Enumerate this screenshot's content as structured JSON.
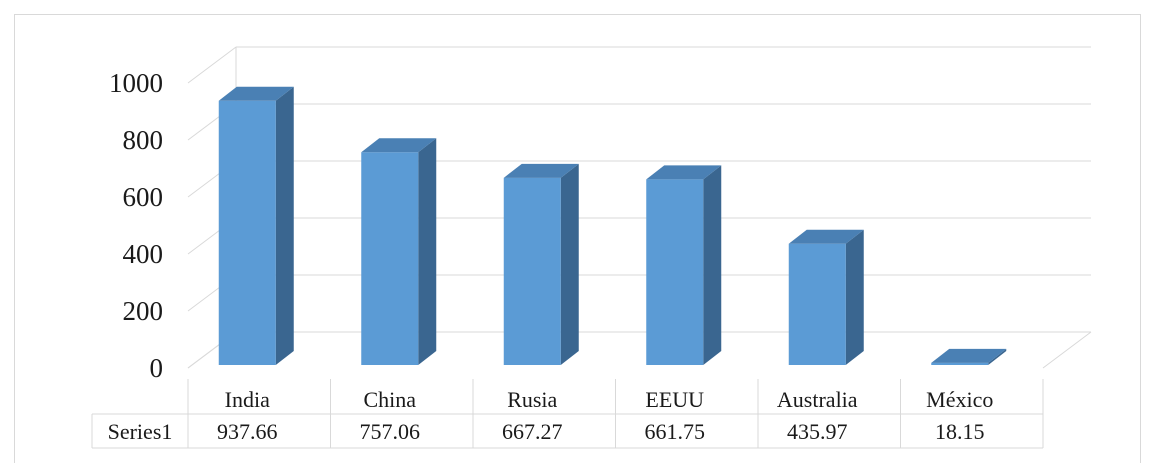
{
  "chart_data": {
    "type": "bar",
    "categories": [
      "India",
      "China",
      "Rusia",
      "EEUU",
      "Australia",
      "México"
    ],
    "series": [
      {
        "name": "Series1",
        "values": [
          937.66,
          757.06,
          667.27,
          661.75,
          435.97,
          18.15
        ],
        "display_values": [
          "937.66",
          "757.06",
          "667.27",
          "661.75",
          "435.97",
          "18.15"
        ]
      }
    ],
    "yticks": [
      "0",
      "200",
      "400",
      "600",
      "800",
      "1000"
    ],
    "ylim": [
      0,
      1000
    ],
    "grid": true,
    "legend": "data-table",
    "colors": {
      "bar_front": "#5b9bd5",
      "bar_side": "#3a6690",
      "bar_top": "#4a80b4",
      "gridline": "#d9d9d9",
      "table_border": "#d9d9d9"
    }
  }
}
